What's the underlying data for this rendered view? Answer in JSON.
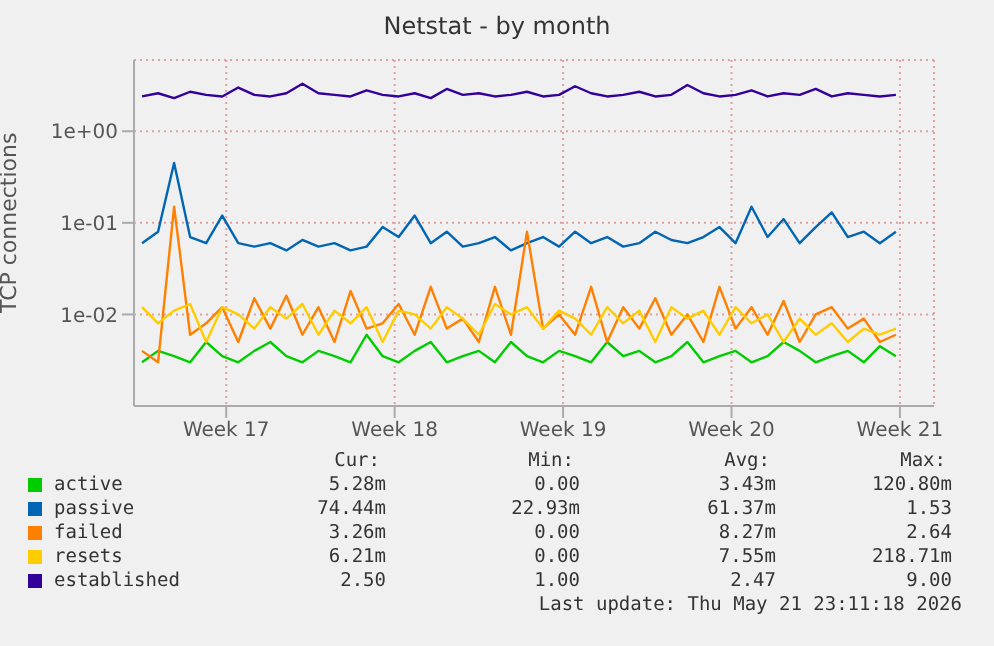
{
  "chart_data": {
    "type": "line",
    "title": "Netstat - by month",
    "ylabel": "TCP connections",
    "log": "y",
    "grid": true,
    "legend": "bottom",
    "marker": "none",
    "xlim": [
      "2026-04-19T16:00",
      "2026-05-22T22:00"
    ],
    "xticks": [
      {
        "value": "2026-04-23T12:00",
        "label": "Week 17"
      },
      {
        "value": "2026-04-30T12:00",
        "label": "Week 18"
      },
      {
        "value": "2026-05-07T12:00",
        "label": "Week 19"
      },
      {
        "value": "2026-05-14T12:00",
        "label": "Week 20"
      },
      {
        "value": "2026-05-21T12:00",
        "label": "Week 21"
      }
    ],
    "ylim": [
      0.001,
      6
    ],
    "yticks": [
      {
        "value": 0.01,
        "label": "1e-02"
      },
      {
        "value": 0.1,
        "label": "1e-01"
      },
      {
        "value": 1,
        "label": "1e+00"
      }
    ],
    "x": [
      "2026-04-20T00:00",
      "2026-04-20T16:00",
      "2026-04-21T08:00",
      "2026-04-22T00:00",
      "2026-04-22T16:00",
      "2026-04-23T08:00",
      "2026-04-24T00:00",
      "2026-04-24T16:00",
      "2026-04-25T08:00",
      "2026-04-26T00:00",
      "2026-04-26T16:00",
      "2026-04-27T08:00",
      "2026-04-28T00:00",
      "2026-04-28T16:00",
      "2026-04-29T08:00",
      "2026-04-30T00:00",
      "2026-04-30T16:00",
      "2026-05-01T08:00",
      "2026-05-02T00:00",
      "2026-05-02T16:00",
      "2026-05-03T08:00",
      "2026-05-04T00:00",
      "2026-05-04T16:00",
      "2026-05-05T08:00",
      "2026-05-06T00:00",
      "2026-05-06T16:00",
      "2026-05-07T08:00",
      "2026-05-08T00:00",
      "2026-05-08T16:00",
      "2026-05-09T08:00",
      "2026-05-10T00:00",
      "2026-05-10T16:00",
      "2026-05-11T08:00",
      "2026-05-12T00:00",
      "2026-05-12T16:00",
      "2026-05-13T08:00",
      "2026-05-14T00:00",
      "2026-05-14T16:00",
      "2026-05-15T08:00",
      "2026-05-16T00:00",
      "2026-05-16T16:00",
      "2026-05-17T08:00",
      "2026-05-18T00:00",
      "2026-05-18T16:00",
      "2026-05-19T08:00",
      "2026-05-20T00:00",
      "2026-05-20T16:00",
      "2026-05-21T08:00"
    ],
    "series": [
      {
        "name": "active",
        "color": "#00cc00",
        "values": [
          0.003,
          0.004,
          0.0035,
          0.003,
          0.005,
          0.0035,
          0.003,
          0.004,
          0.005,
          0.0035,
          0.003,
          0.004,
          0.0035,
          0.003,
          0.006,
          0.0035,
          0.003,
          0.004,
          0.005,
          0.003,
          0.0035,
          0.004,
          0.003,
          0.005,
          0.0035,
          0.003,
          0.004,
          0.0035,
          0.003,
          0.005,
          0.0035,
          0.004,
          0.003,
          0.0035,
          0.005,
          0.003,
          0.0035,
          0.004,
          0.003,
          0.0035,
          0.005,
          0.004,
          0.003,
          0.0035,
          0.004,
          0.003,
          0.0045,
          0.0035
        ]
      },
      {
        "name": "passive",
        "color": "#0066b3",
        "values": [
          0.06,
          0.08,
          0.45,
          0.07,
          0.06,
          0.12,
          0.06,
          0.055,
          0.06,
          0.05,
          0.065,
          0.055,
          0.06,
          0.05,
          0.055,
          0.09,
          0.07,
          0.12,
          0.06,
          0.08,
          0.055,
          0.06,
          0.07,
          0.05,
          0.06,
          0.07,
          0.055,
          0.08,
          0.06,
          0.07,
          0.055,
          0.06,
          0.08,
          0.065,
          0.06,
          0.07,
          0.09,
          0.06,
          0.15,
          0.07,
          0.11,
          0.06,
          0.09,
          0.13,
          0.07,
          0.08,
          0.06,
          0.08
        ]
      },
      {
        "name": "failed",
        "color": "#ff8000",
        "values": [
          0.004,
          0.003,
          0.15,
          0.006,
          0.008,
          0.012,
          0.005,
          0.015,
          0.007,
          0.016,
          0.006,
          0.012,
          0.005,
          0.018,
          0.007,
          0.008,
          0.013,
          0.006,
          0.02,
          0.007,
          0.009,
          0.005,
          0.02,
          0.006,
          0.08,
          0.007,
          0.01,
          0.006,
          0.02,
          0.005,
          0.012,
          0.007,
          0.015,
          0.006,
          0.01,
          0.005,
          0.02,
          0.007,
          0.012,
          0.006,
          0.014,
          0.005,
          0.01,
          0.012,
          0.007,
          0.009,
          0.005,
          0.006
        ]
      },
      {
        "name": "resets",
        "color": "#ffcc00",
        "values": [
          0.012,
          0.008,
          0.011,
          0.013,
          0.005,
          0.012,
          0.01,
          0.007,
          0.012,
          0.009,
          0.013,
          0.006,
          0.011,
          0.008,
          0.012,
          0.005,
          0.011,
          0.01,
          0.007,
          0.012,
          0.009,
          0.006,
          0.013,
          0.01,
          0.012,
          0.007,
          0.011,
          0.009,
          0.006,
          0.012,
          0.008,
          0.011,
          0.005,
          0.012,
          0.009,
          0.011,
          0.006,
          0.012,
          0.008,
          0.01,
          0.005,
          0.009,
          0.006,
          0.008,
          0.005,
          0.007,
          0.006,
          0.007
        ]
      },
      {
        "name": "established",
        "color": "#330099",
        "values": [
          2.4,
          2.6,
          2.3,
          2.7,
          2.5,
          2.4,
          3.0,
          2.5,
          2.4,
          2.6,
          3.3,
          2.6,
          2.5,
          2.4,
          2.8,
          2.5,
          2.4,
          2.6,
          2.3,
          2.9,
          2.5,
          2.6,
          2.4,
          2.5,
          2.7,
          2.4,
          2.5,
          3.1,
          2.6,
          2.4,
          2.5,
          2.7,
          2.4,
          2.5,
          3.2,
          2.6,
          2.4,
          2.5,
          2.8,
          2.4,
          2.6,
          2.5,
          2.9,
          2.4,
          2.6,
          2.5,
          2.4,
          2.5
        ]
      }
    ],
    "annotations": [
      "Cur:",
      "Min:",
      "Avg:",
      "Max:",
      "5.28m",
      "0.00",
      "3.43m",
      "120.80m",
      "74.44m",
      "22.93m",
      "61.37m",
      "1.53",
      "3.26m",
      "0.00",
      "8.27m",
      "2.64",
      "6.21m",
      "0.00",
      "7.55m",
      "218.71m",
      "2.50",
      "1.00",
      "2.47",
      "9.00",
      "Last update: Thu May 21 23:11:18 2026"
    ]
  }
}
